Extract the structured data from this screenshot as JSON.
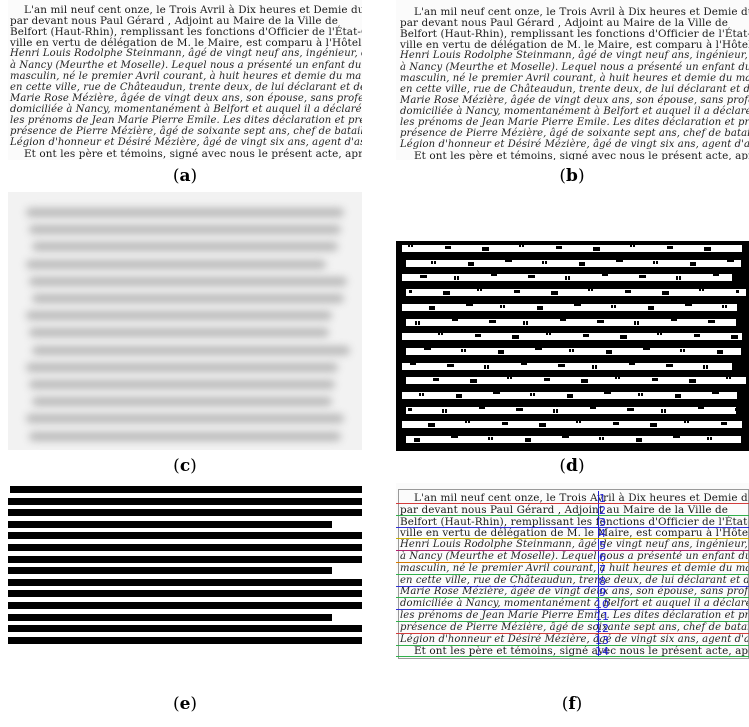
{
  "document_lines": [
    {
      "text": "L'an mil neuf cent onze, le  Trois Avril       à Dix heures et Demie du matin",
      "hand": false
    },
    {
      "text": "par devant nous    Paul Gérard           , Adjoint au Maire de la Ville de",
      "hand": false
    },
    {
      "text": "Belfort (Haut-Rhin), remplissant les fonctions d'Officier de l'État-Civil de la dite",
      "hand": false
    },
    {
      "text": "ville en vertu de délégation de M. le Maire, est comparu à l'Hôtel de Ville,",
      "hand": false
    },
    {
      "text": "Henri Louis Rodolphe Steinmann, âgé de vingt neuf ans, ingénieur, domicilié",
      "hand": true
    },
    {
      "text": "à Nancy (Meurthe et Moselle). Lequel nous a présenté un enfant du sexe",
      "hand": true
    },
    {
      "text": "masculin, né le premier Avril courant, à huit heures et demie du matin,",
      "hand": true
    },
    {
      "text": "en cette ville, rue de Châteaudun, trente deux, de lui déclarant et de Françoise",
      "hand": true
    },
    {
      "text": "Marie Rose Mézière, âgée de vingt deux ans, son épouse, sans profession, aussi",
      "hand": true
    },
    {
      "text": "domiciliée à Nancy, momentanément à Belfort et auquel il a déclaré vouloir donner",
      "hand": true
    },
    {
      "text": "les prénoms de Jean Marie Pierre Emile. Les dites déclaration et présentation faites en",
      "hand": true
    },
    {
      "text": "présence de Pierre Mézière, âgé de soixante sept ans, chef de bataillon en retraite, chevalier de la",
      "hand": true
    },
    {
      "text": "Légion d'honneur et Désiré Mézière, âgé de vingt six ans, agent d'assurances, les deux domiciliés à",
      "hand": true
    },
    {
      "text": "Et ont les   père   et témoins, signé avec nous le présent acte, après lecture",
      "hand": false
    }
  ],
  "panels": [
    {
      "id": "a",
      "label": "a"
    },
    {
      "id": "b",
      "label": "b"
    },
    {
      "id": "c",
      "label": "c"
    },
    {
      "id": "d",
      "label": "d"
    },
    {
      "id": "e",
      "label": "e"
    },
    {
      "id": "f",
      "label": "f"
    }
  ],
  "segmentation": {
    "numbers": [
      "1",
      "2",
      "3",
      "4",
      "5",
      "6",
      "7",
      "8",
      "9",
      "10",
      "11",
      "12",
      "13",
      "14"
    ],
    "line_colors": [
      "#d43c3c",
      "#2fb04a",
      "#2f2fd6",
      "#c9b000",
      "#b0246f",
      "#d47a00",
      "#2fb04a",
      "#2f2fd6",
      "#2fb04a",
      "#2f2fd6",
      "#2fb04a",
      "#d43c3c",
      "#2fb04a",
      "#2fb04a"
    ]
  }
}
